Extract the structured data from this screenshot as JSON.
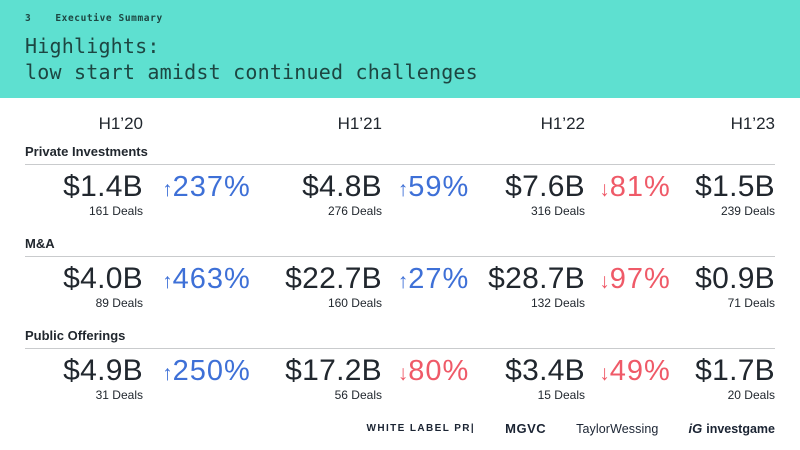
{
  "slide": {
    "page_number": "3",
    "eyebrow": "Executive Summary",
    "title_line1": "Highlights:",
    "title_line2": "low start amidst continued challenges"
  },
  "colors": {
    "band_teal": "#5EE0D0",
    "band_text": "#1D4642",
    "text_dark": "#21272E",
    "up_blue": "#3E70D7",
    "down_red": "#EF5A68",
    "divider_gray": "#C9CBCD",
    "logo_navy": "#1B2433"
  },
  "table": {
    "column_headers": [
      "H1’20",
      "H1’21",
      "H1’22",
      "H1’23"
    ],
    "sections": [
      {
        "label": "Private Investments",
        "values": [
          {
            "amount": "$1.4B",
            "deals": "161 Deals"
          },
          {
            "amount": "$4.8B",
            "deals": "276 Deals"
          },
          {
            "amount": "$7.6B",
            "deals": "316 Deals"
          },
          {
            "amount": "$1.5B",
            "deals": "239 Deals"
          }
        ],
        "changes": [
          {
            "direction": "up",
            "arrow": "↑",
            "value": "237%"
          },
          {
            "direction": "up",
            "arrow": "↑",
            "value": "59%"
          },
          {
            "direction": "down",
            "arrow": "↓",
            "value": "81%"
          }
        ]
      },
      {
        "label": "M&A",
        "values": [
          {
            "amount": "$4.0B",
            "deals": "89 Deals"
          },
          {
            "amount": "$22.7B",
            "deals": "160 Deals"
          },
          {
            "amount": "$28.7B",
            "deals": "132 Deals"
          },
          {
            "amount": "$0.9B",
            "deals": "71 Deals"
          }
        ],
        "changes": [
          {
            "direction": "up",
            "arrow": "↑",
            "value": "463%"
          },
          {
            "direction": "up",
            "arrow": "↑",
            "value": "27%"
          },
          {
            "direction": "down",
            "arrow": "↓",
            "value": "97%"
          }
        ]
      },
      {
        "label": "Public Offerings",
        "values": [
          {
            "amount": "$4.9B",
            "deals": "31 Deals"
          },
          {
            "amount": "$17.2B",
            "deals": "56 Deals"
          },
          {
            "amount": "$3.4B",
            "deals": "15 Deals"
          },
          {
            "amount": "$1.7B",
            "deals": "20 Deals"
          }
        ],
        "changes": [
          {
            "direction": "up",
            "arrow": "↑",
            "value": "250%"
          },
          {
            "direction": "down",
            "arrow": "↓",
            "value": "80%"
          },
          {
            "direction": "down",
            "arrow": "↓",
            "value": "49%"
          }
        ]
      }
    ]
  },
  "footer": {
    "logos": [
      {
        "name": "White Label PR",
        "text": "WHITE LABEL PR|"
      },
      {
        "name": "MGVC",
        "text": "MGVC"
      },
      {
        "name": "TaylorWessing",
        "text": "TaylorWessing"
      },
      {
        "name": "InvestGame",
        "mark": "iG",
        "text": "investgame"
      }
    ]
  }
}
